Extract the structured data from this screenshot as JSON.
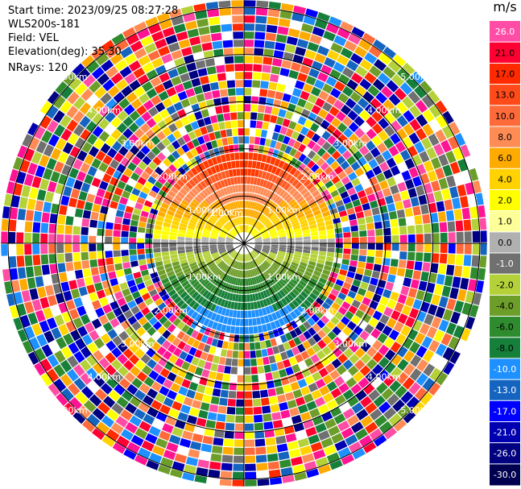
{
  "header": {
    "start_time": "Start time: 2023/09/25 08:27:28",
    "instrument": "WLS200s-181",
    "field": "Field: VEL",
    "elevation": "Elevation(deg): 35.30",
    "nrays": "NRays: 120"
  },
  "colorbar": {
    "unit": "m/s",
    "levels": [
      {
        "label": "26.0",
        "color": "#ff4da6"
      },
      {
        "label": "21.0",
        "color": "#ff0033"
      },
      {
        "label": "17.0",
        "color": "#ff2a00"
      },
      {
        "label": "13.0",
        "color": "#ff4a1a"
      },
      {
        "label": "10.0",
        "color": "#ff6a3a"
      },
      {
        "label": "8.0",
        "color": "#ff8c55"
      },
      {
        "label": "6.0",
        "color": "#ffaa00"
      },
      {
        "label": "4.0",
        "color": "#ffd200"
      },
      {
        "label": "2.0",
        "color": "#ffff00"
      },
      {
        "label": "1.0",
        "color": "#ffff99"
      },
      {
        "label": "0.0",
        "color": "#b0b0b0"
      },
      {
        "label": "-1.0",
        "color": "#707070"
      },
      {
        "label": "-2.0",
        "color": "#b5d13a"
      },
      {
        "label": "-4.0",
        "color": "#6e9e2a"
      },
      {
        "label": "-6.0",
        "color": "#2e8b2e"
      },
      {
        "label": "-8.0",
        "color": "#16803a"
      },
      {
        "label": "-10.0",
        "color": "#1e90ff"
      },
      {
        "label": "-13.0",
        "color": "#1565c0"
      },
      {
        "label": "-17.0",
        "color": "#0000ff"
      },
      {
        "label": "-21.0",
        "color": "#0000b0"
      },
      {
        "label": "-26.0",
        "color": "#000080"
      },
      {
        "label": "-30.0",
        "color": "#000050"
      }
    ]
  },
  "chart_data": {
    "type": "heatmap",
    "projection": "polar",
    "field": "VEL",
    "rays": 120,
    "range_rings_km": [
      {
        "label": "1.00km",
        "value": 1.0
      },
      {
        "label": "2.00km",
        "value": 2.0
      },
      {
        "label": "3.00km",
        "value": 3.0
      },
      {
        "label": "4.00km",
        "value": 4.0
      },
      {
        "label": "5.00km",
        "value": 5.0
      }
    ],
    "center_label": "1.00km",
    "max_range_km": 5.15,
    "valid_data_range_km": 1.9,
    "structure": "Positive velocities (orange/red) in northern sector, near zero at center band, negative (green/blue) in southern sector; outside about 2 km range the signal is noise",
    "value_range": [
      -30.0,
      26.0
    ]
  }
}
